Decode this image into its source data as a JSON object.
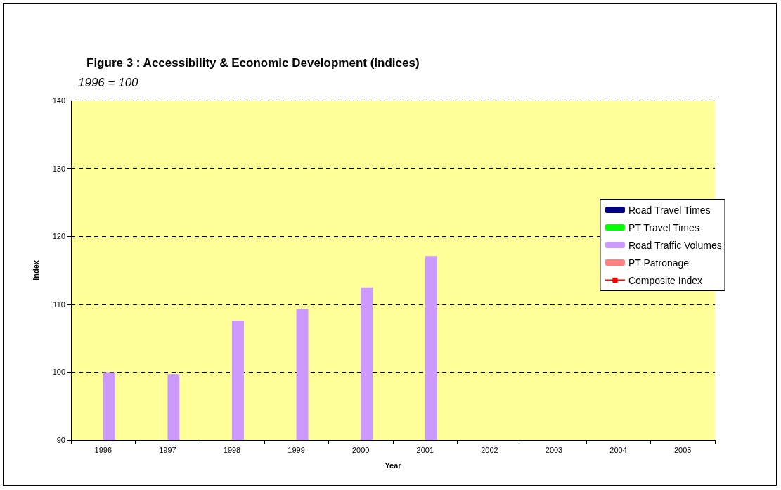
{
  "chart_data": {
    "type": "bar",
    "title": "Figure 3 : Accessibility & Economic Development (Indices)",
    "subtitle": "1996 = 100",
    "xlabel": "Year",
    "ylabel": "Index",
    "categories": [
      "1996",
      "1997",
      "1998",
      "1999",
      "2000",
      "2001",
      "2002",
      "2003",
      "2004",
      "2005"
    ],
    "series": [
      {
        "name": "Road Travel Times",
        "color": "#000080",
        "values": [
          null,
          null,
          null,
          null,
          null,
          null,
          null,
          null,
          null,
          null
        ]
      },
      {
        "name": "PT Travel Times",
        "color": "#00ff00",
        "values": [
          null,
          null,
          null,
          null,
          null,
          null,
          null,
          null,
          null,
          null
        ]
      },
      {
        "name": "Road Traffic Volumes",
        "color": "#cc99ff",
        "values": [
          100,
          99.7,
          107.6,
          109.3,
          112.5,
          117.1,
          null,
          null,
          null,
          null
        ]
      },
      {
        "name": "PT Patronage",
        "color": "#ff8080",
        "values": [
          null,
          null,
          null,
          null,
          null,
          null,
          null,
          null,
          null,
          null
        ]
      },
      {
        "name": "Composite Index",
        "type": "line",
        "color": "#ff0000",
        "marker": "square",
        "values": [
          null,
          null,
          null,
          null,
          null,
          null,
          null,
          null,
          null,
          null
        ]
      }
    ],
    "ylim": [
      90,
      140
    ],
    "yticks": [
      90,
      100,
      110,
      120,
      130,
      140
    ],
    "grid": "y",
    "legend": "right"
  }
}
